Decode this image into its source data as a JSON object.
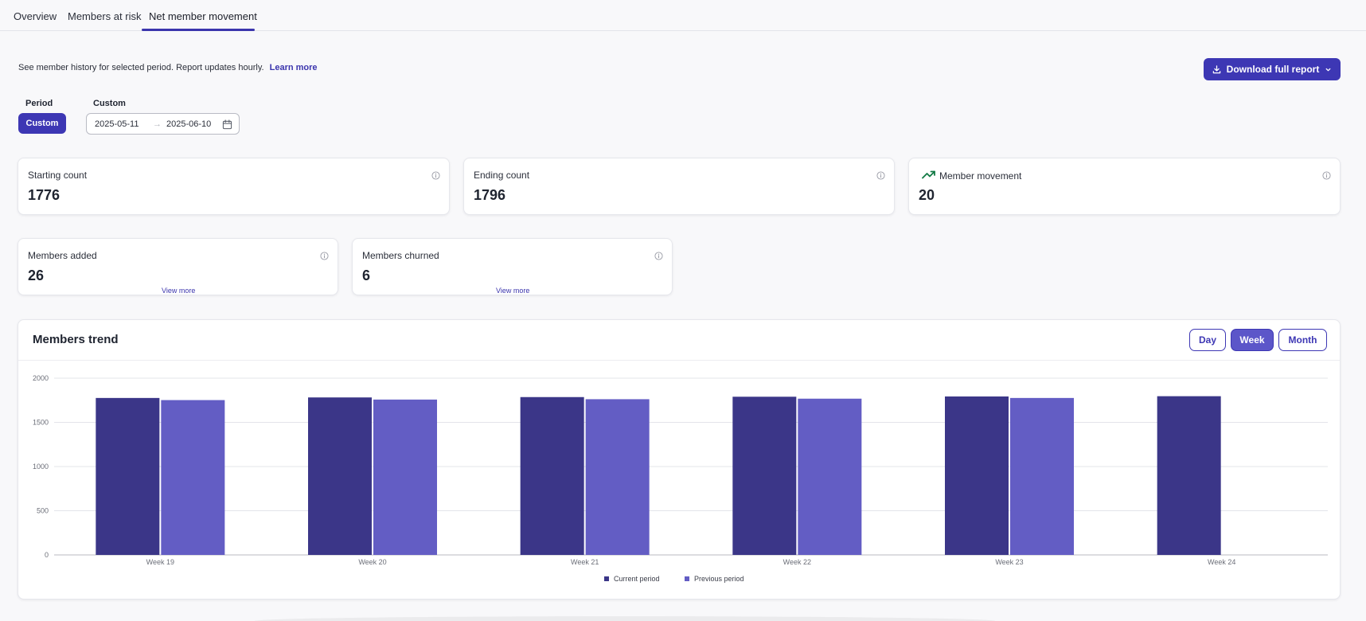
{
  "tabs": [
    {
      "label": "Overview",
      "active": false
    },
    {
      "label": "Members at risk",
      "active": false
    },
    {
      "label": "Net member movement",
      "active": true
    }
  ],
  "info": {
    "text": "See member history for selected period. Report updates hourly.",
    "link": "Learn more"
  },
  "download": {
    "label": "Download full report"
  },
  "period": {
    "label": "Period",
    "button": "Custom",
    "custom_label": "Custom",
    "start": "2025-05-11",
    "end": "2025-06-10",
    "separator": "→"
  },
  "kpis": {
    "starting": {
      "label": "Starting count",
      "value": "1776"
    },
    "ending": {
      "label": "Ending count",
      "value": "1796"
    },
    "movement": {
      "label": "Member movement",
      "value": "20"
    },
    "added": {
      "label": "Members added",
      "value": "26",
      "link": "View more"
    },
    "churned": {
      "label": "Members churned",
      "value": "6",
      "link": "View more"
    }
  },
  "colors": {
    "accent": "#3d37b4",
    "current": "#3b3688",
    "previous": "#635dc4",
    "trend_up": "#127a45"
  },
  "chart": {
    "title": "Members trend",
    "granularity": [
      {
        "label": "Day",
        "active": false
      },
      {
        "label": "Week",
        "active": true
      },
      {
        "label": "Month",
        "active": false
      }
    ]
  },
  "chart_data": {
    "type": "bar",
    "categories": [
      "Week 19",
      "Week 20",
      "Week 21",
      "Week 22",
      "Week 23",
      "Week 24"
    ],
    "series": [
      {
        "name": "Current period",
        "values": [
          1776,
          1782,
          1786,
          1790,
          1793,
          1796
        ]
      },
      {
        "name": "Previous period",
        "values": [
          1752,
          1758,
          1762,
          1768,
          1776,
          null
        ]
      }
    ],
    "yticks": [
      "0",
      "500",
      "1000",
      "1500",
      "2000"
    ],
    "ylim": [
      0,
      2000
    ],
    "grid": true,
    "legend": "bottom-center"
  }
}
